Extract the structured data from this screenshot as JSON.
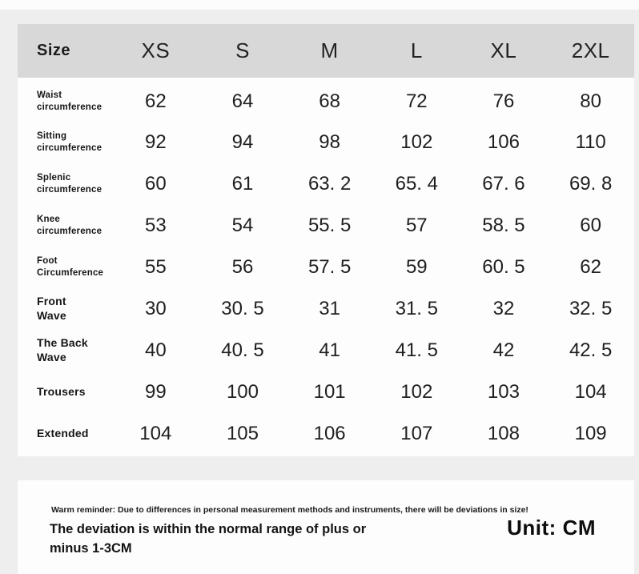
{
  "chart_data": {
    "type": "table",
    "title": "Size",
    "columns": [
      "XS",
      "S",
      "M",
      "L",
      "XL",
      "2XL"
    ],
    "rows": [
      {
        "label": "Waist\ncircumference",
        "values": [
          "62",
          "64",
          "68",
          "72",
          "76",
          "80"
        ]
      },
      {
        "label": "Sitting\ncircumference",
        "values": [
          "92",
          "94",
          "98",
          "102",
          "106",
          "110"
        ]
      },
      {
        "label": "Splenic\ncircumference",
        "values": [
          "60",
          "61",
          "63. 2",
          "65. 4",
          "67. 6",
          "69. 8"
        ]
      },
      {
        "label": "Knee\ncircumference",
        "values": [
          "53",
          "54",
          "55. 5",
          "57",
          "58. 5",
          "60"
        ]
      },
      {
        "label": "Foot\nCircumference",
        "values": [
          "55",
          "56",
          "57. 5",
          "59",
          "60. 5",
          "62"
        ]
      },
      {
        "label": "Front\nWave",
        "values": [
          "30",
          "30. 5",
          "31",
          "31. 5",
          "32",
          "32. 5"
        ]
      },
      {
        "label": "The Back\nWave",
        "values": [
          "40",
          "40. 5",
          "41",
          "41. 5",
          "42",
          "42. 5"
        ]
      },
      {
        "label": "Trousers",
        "values": [
          "99",
          "100",
          "101",
          "102",
          "103",
          "104"
        ]
      },
      {
        "label": "Extended",
        "values": [
          "104",
          "105",
          "106",
          "107",
          "108",
          "109"
        ]
      }
    ],
    "unit": "CM"
  },
  "footer": {
    "reminder": "Warm reminder: Due to differences in personal measurement methods and instruments, there will be deviations in size!",
    "deviation_note": "The deviation is within the normal range of plus or\nminus 1-3CM",
    "unit": "Unit: CM"
  },
  "colors": {
    "header_bg": "#d8d8d8",
    "page_bg": "#efeeef",
    "card_bg": "#fdfdfd"
  }
}
